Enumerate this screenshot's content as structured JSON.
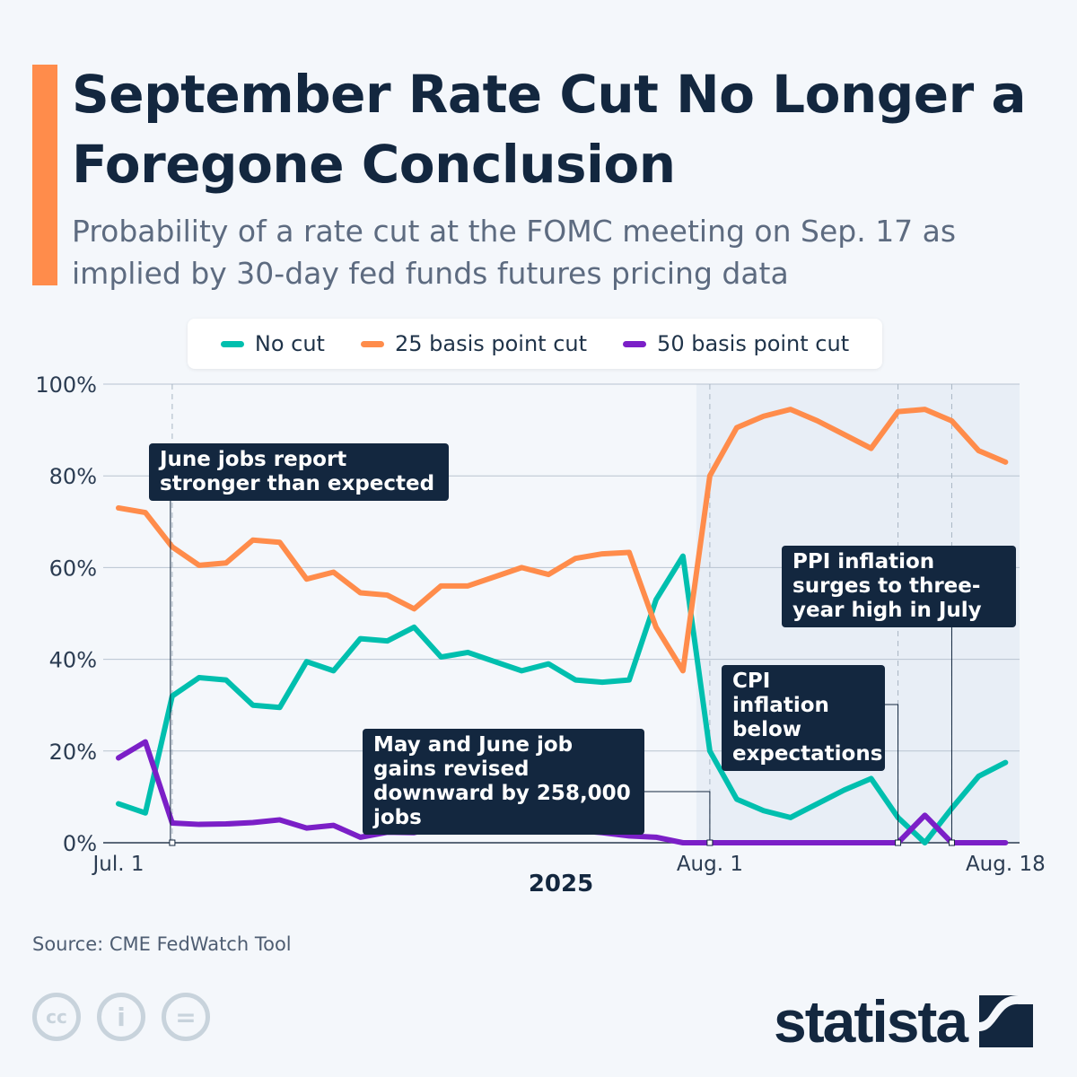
{
  "title": "September Rate Cut No Longer a Foregone Conclusion",
  "subtitle": "Probability of a rate cut at the FOMC meeting on Sep. 17 as implied by 30-day fed funds futures pricing data",
  "source": "Source: CME FedWatch Tool",
  "brand": "statista",
  "license_icons": [
    "cc-icon",
    "attribution-icon",
    "no-derivatives-icon"
  ],
  "colors": {
    "accent": "#ff8c4b",
    "no_cut": "#00bfae",
    "cut_25": "#ff8c4b",
    "cut_50": "#7b1fc7",
    "annotation_bg": "#13273f",
    "highlight": "#e8eef6"
  },
  "chart_data": {
    "type": "line",
    "x": [
      "2025-07-01",
      "2025-07-02",
      "2025-07-03",
      "2025-07-07",
      "2025-07-08",
      "2025-07-09",
      "2025-07-10",
      "2025-07-11",
      "2025-07-14",
      "2025-07-15",
      "2025-07-16",
      "2025-07-17",
      "2025-07-18",
      "2025-07-21",
      "2025-07-22",
      "2025-07-23",
      "2025-07-24",
      "2025-07-25",
      "2025-07-28",
      "2025-07-29",
      "2025-07-30",
      "2025-07-31",
      "2025-08-01",
      "2025-08-04",
      "2025-08-05",
      "2025-08-06",
      "2025-08-07",
      "2025-08-08",
      "2025-08-11",
      "2025-08-12",
      "2025-08-13",
      "2025-08-14",
      "2025-08-15",
      "2025-08-18"
    ],
    "series": [
      {
        "name": "No cut",
        "color": "#00bfae",
        "values": [
          8.5,
          6.5,
          32,
          36,
          35.5,
          30,
          29.5,
          39.5,
          37.5,
          44.5,
          44,
          47,
          40.5,
          41.5,
          39.5,
          37.5,
          39,
          35.5,
          35,
          35.5,
          53,
          62.5,
          20,
          9.5,
          7,
          5.5,
          8.5,
          11.5,
          14,
          5.5,
          0,
          7.5,
          14.5,
          17.5
        ]
      },
      {
        "name": "25 basis point cut",
        "color": "#ff8c4b",
        "values": [
          73,
          72,
          64.5,
          60.5,
          61,
          66,
          65.5,
          57.5,
          59,
          54.5,
          54,
          51,
          56,
          56,
          58,
          60,
          58.5,
          62,
          63,
          63.3,
          47,
          37.5,
          80,
          90.5,
          93,
          94.5,
          92,
          89,
          86,
          94,
          94.5,
          92,
          85.5,
          83
        ]
      },
      {
        "name": "50 basis point cut",
        "color": "#7b1fc7",
        "values": [
          18.5,
          22,
          4.3,
          4,
          4.1,
          4.4,
          5,
          3.2,
          3.8,
          1.2,
          2.3,
          2.2,
          3.5,
          2.5,
          2.6,
          2.7,
          2.6,
          2.7,
          2.2,
          1.5,
          1.2,
          0,
          0,
          0,
          0,
          0,
          0,
          0,
          0,
          0,
          6,
          0,
          0,
          0
        ]
      }
    ],
    "ylim": [
      0,
      100
    ],
    "y_ticks": [
      "0%",
      "20%",
      "40%",
      "60%",
      "80%",
      "100%"
    ],
    "y_tick_values": [
      0,
      20,
      40,
      60,
      80,
      100
    ],
    "x_ticks": [
      {
        "date": "2025-07-01",
        "label": "Jul. 1"
      },
      {
        "date": "2025-08-01",
        "label": "Aug. 1"
      },
      {
        "date": "2025-08-18",
        "label": "Aug. 18"
      }
    ],
    "xlabel": "2025",
    "grid": true,
    "legend": "top-center",
    "highlight_range": [
      "2025-08-01",
      "2025-08-18"
    ],
    "annotations": [
      {
        "date": "2025-07-03",
        "text": "June jobs report stronger than expected"
      },
      {
        "date": "2025-08-01",
        "text": "May and June job gains revised downward by 258,000 jobs"
      },
      {
        "date": "2025-08-12",
        "text": "CPI inflation below expectations"
      },
      {
        "date": "2025-08-14",
        "text": "PPI inflation surges to three-year high in July"
      }
    ]
  }
}
